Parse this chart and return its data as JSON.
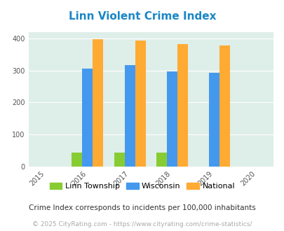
{
  "title": "Linn Violent Crime Index",
  "title_color": "#1a86c7",
  "years": [
    2016,
    2017,
    2018,
    2019
  ],
  "x_ticks": [
    2015,
    2016,
    2017,
    2018,
    2019,
    2020
  ],
  "linn_township": [
    44,
    44,
    44,
    0
  ],
  "wisconsin": [
    307,
    318,
    297,
    294
  ],
  "national": [
    399,
    394,
    383,
    379
  ],
  "linn_color": "#88cc33",
  "wisconsin_color": "#4499ee",
  "national_color": "#ffaa33",
  "bg_color": "#deeee8",
  "ylim": [
    0,
    420
  ],
  "yticks": [
    0,
    100,
    200,
    300,
    400
  ],
  "legend_labels": [
    "Linn Township",
    "Wisconsin",
    "National"
  ],
  "footnote": "Crime Index corresponds to incidents per 100,000 inhabitants",
  "copyright": "© 2025 CityRating.com - https://www.cityrating.com/crime-statistics/",
  "footnote_color": "#333333",
  "copyright_color": "#aaaaaa",
  "bar_width": 0.25,
  "figsize": [
    4.06,
    3.3
  ],
  "dpi": 100
}
